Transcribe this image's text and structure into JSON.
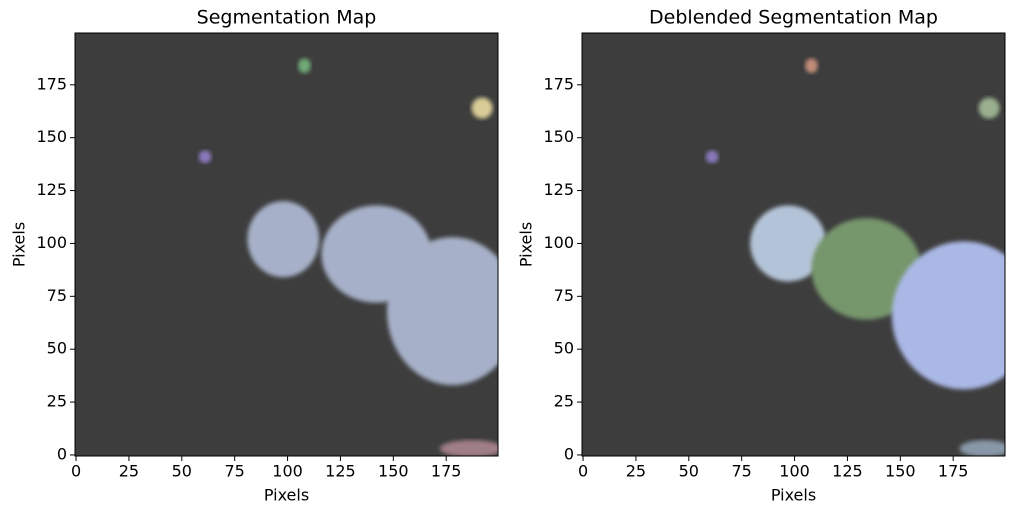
{
  "chart_data": [
    {
      "type": "image",
      "title": "Segmentation Map",
      "xlabel": "Pixels",
      "ylabel": "Pixels",
      "xlim": [
        -0.5,
        199.5
      ],
      "ylim": [
        -0.5,
        199.5
      ],
      "xticks": [
        0,
        25,
        50,
        75,
        100,
        125,
        150,
        175
      ],
      "yticks": [
        0,
        25,
        50,
        75,
        100,
        125,
        150,
        175
      ],
      "background": "#3d3d3d",
      "segments": [
        {
          "x": 108,
          "y": 184,
          "rx": 3,
          "ry": 3.5,
          "color": "#6faa76"
        },
        {
          "x": 192,
          "y": 164,
          "rx": 5,
          "ry": 5,
          "color": "#d9cc96"
        },
        {
          "x": 61,
          "y": 141,
          "rx": 3,
          "ry": 3,
          "color": "#8a78bc"
        },
        {
          "x": 98,
          "y": 102,
          "rx": 17,
          "ry": 18,
          "color": "#a6b0c8"
        },
        {
          "x": 142,
          "y": 95,
          "rx": 26,
          "ry": 23,
          "color": "#a6b0c8"
        },
        {
          "x": 178,
          "y": 68,
          "rx": 31,
          "ry": 35,
          "color": "#a6b0c8"
        },
        {
          "x": 187,
          "y": 3,
          "rx": 15,
          "ry": 4,
          "color": "#a07e86"
        }
      ]
    },
    {
      "type": "image",
      "title": "Deblended Segmentation Map",
      "xlabel": "Pixels",
      "ylabel": "Pixels",
      "xlim": [
        -0.5,
        199.5
      ],
      "ylim": [
        -0.5,
        199.5
      ],
      "xticks": [
        0,
        25,
        50,
        75,
        100,
        125,
        150,
        175
      ],
      "yticks": [
        0,
        25,
        50,
        75,
        100,
        125,
        150,
        175
      ],
      "background": "#3d3d3d",
      "segments": [
        {
          "x": 108,
          "y": 184,
          "rx": 3,
          "ry": 3.5,
          "color": "#c28c78"
        },
        {
          "x": 192,
          "y": 164,
          "rx": 5,
          "ry": 5,
          "color": "#9ab08e"
        },
        {
          "x": 61,
          "y": 141,
          "rx": 3,
          "ry": 3,
          "color": "#8a78bc"
        },
        {
          "x": 97,
          "y": 100,
          "rx": 18,
          "ry": 18,
          "color": "#b4c4d8"
        },
        {
          "x": 134,
          "y": 88,
          "rx": 26,
          "ry": 24,
          "color": "#76966c"
        },
        {
          "x": 180,
          "y": 66,
          "rx": 34,
          "ry": 35,
          "color": "#aab8e6"
        },
        {
          "x": 190,
          "y": 3,
          "rx": 12,
          "ry": 4,
          "color": "#8898a8"
        }
      ]
    }
  ]
}
